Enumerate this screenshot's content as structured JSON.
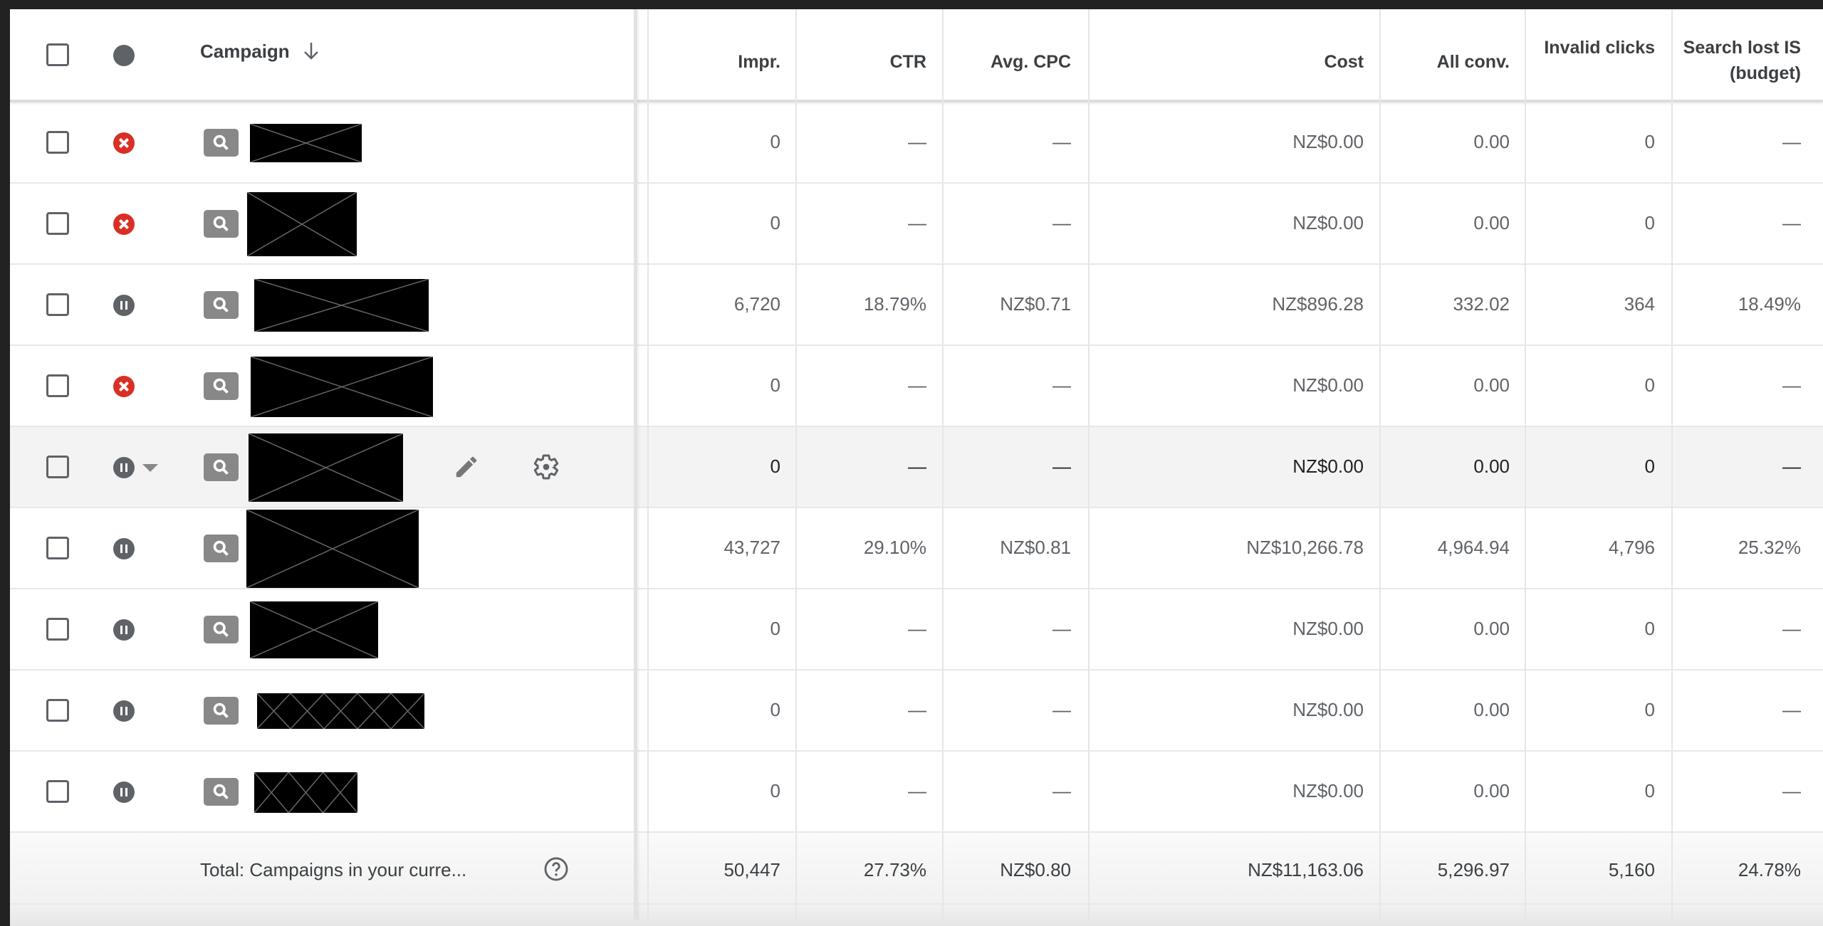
{
  "header": {
    "campaign": "Campaign",
    "sort_icon": "arrow-down-icon",
    "columns": [
      "Impr.",
      "CTR",
      "Avg. CPC",
      "Cost",
      "All conv.",
      "Invalid clicks",
      "Search lost IS (budget)"
    ]
  },
  "status_colors": {
    "removed": "#d93025",
    "paused": "#5f6368"
  },
  "rows": [
    {
      "status": "removed",
      "values": [
        "0",
        "—",
        "—",
        "NZ$0.00",
        "0.00",
        "0",
        "—"
      ]
    },
    {
      "status": "removed",
      "values": [
        "0",
        "—",
        "—",
        "NZ$0.00",
        "0.00",
        "0",
        "—"
      ]
    },
    {
      "status": "paused",
      "values": [
        "6,720",
        "18.79%",
        "NZ$0.71",
        "NZ$896.28",
        "332.02",
        "364",
        "18.49%"
      ]
    },
    {
      "status": "removed",
      "values": [
        "0",
        "—",
        "—",
        "NZ$0.00",
        "0.00",
        "0",
        "—"
      ]
    },
    {
      "status": "paused",
      "hovered": true,
      "values": [
        "0",
        "—",
        "—",
        "NZ$0.00",
        "0.00",
        "0",
        "—"
      ]
    },
    {
      "status": "paused",
      "values": [
        "43,727",
        "29.10%",
        "NZ$0.81",
        "NZ$10,266.78",
        "4,964.94",
        "4,796",
        "25.32%"
      ]
    },
    {
      "status": "paused",
      "values": [
        "0",
        "—",
        "—",
        "NZ$0.00",
        "0.00",
        "0",
        "—"
      ]
    },
    {
      "status": "paused",
      "values": [
        "0",
        "—",
        "—",
        "NZ$0.00",
        "0.00",
        "0",
        "—"
      ]
    },
    {
      "status": "paused",
      "values": [
        "0",
        "—",
        "—",
        "NZ$0.00",
        "0.00",
        "0",
        "—"
      ]
    }
  ],
  "total": {
    "label": "Total: Campaigns in your curre...",
    "values": [
      "50,447",
      "27.73%",
      "NZ$0.80",
      "NZ$11,163.06",
      "5,296.97",
      "5,160",
      "24.78%"
    ]
  }
}
